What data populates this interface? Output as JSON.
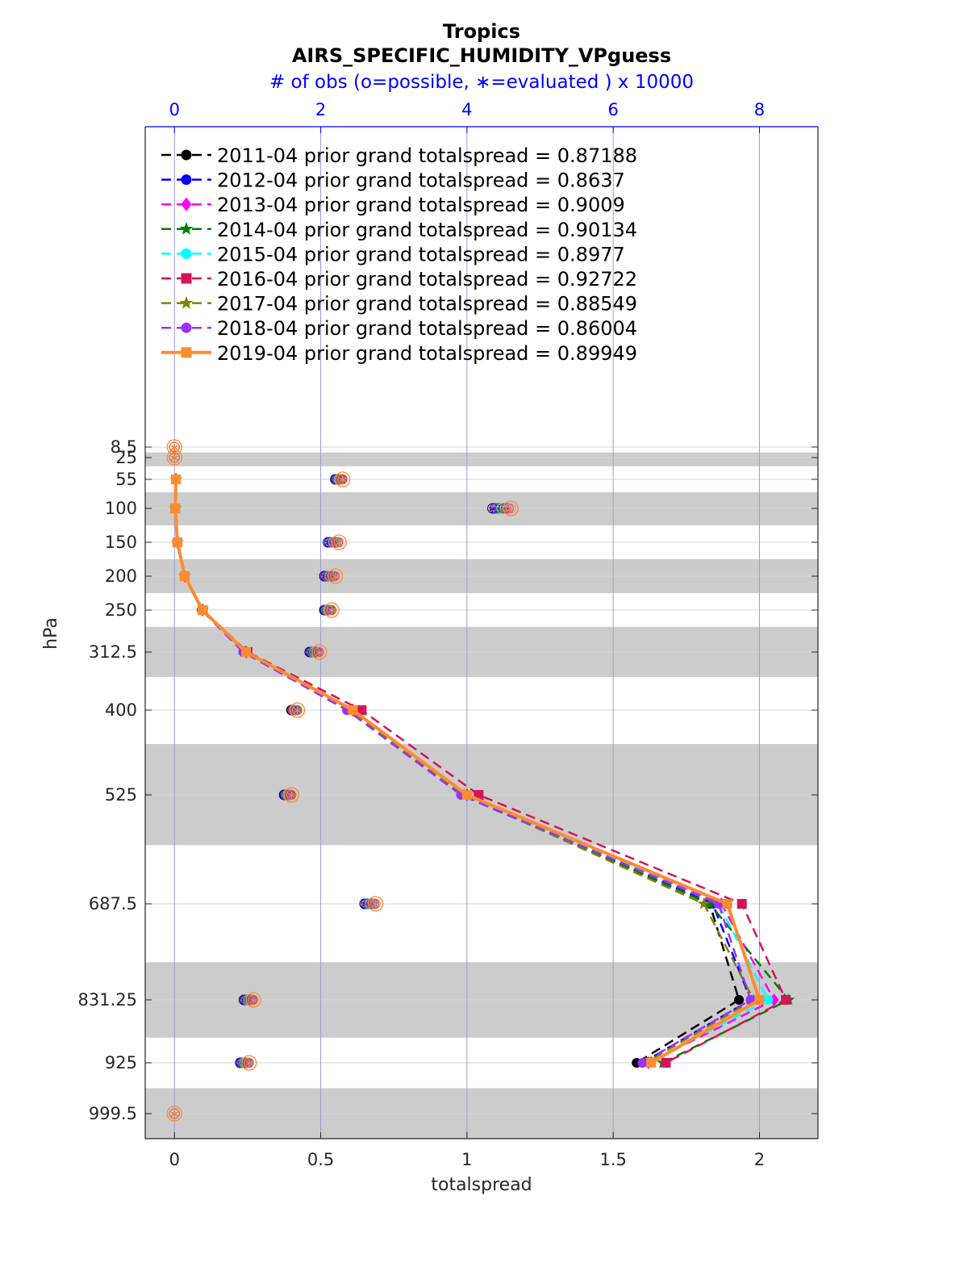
{
  "chart_data": {
    "type": "line",
    "title": "Tropics",
    "subtitle": "AIRS_SPECIFIC_HUMIDITY_VPguess",
    "top_axis_label": "# of obs (o=possible, ∗=evaluated ) x 10000",
    "xlabel": "totalspread",
    "ylabel": "hPa",
    "xlim": [
      -0.1,
      2.2
    ],
    "x_ticks": [
      "0",
      "0.5",
      "1",
      "1.5",
      "2"
    ],
    "top_xlim": [
      -0.4,
      8.8
    ],
    "top_ticks": [
      "0",
      "2",
      "4",
      "6",
      "8"
    ],
    "y_levels": [
      8.5,
      25,
      55,
      100,
      150,
      200,
      250,
      312.5,
      400,
      525,
      687.5,
      831.25,
      925,
      999.5
    ],
    "y_tick_labels": [
      "8.5",
      "25",
      "55",
      "100",
      "150",
      "200",
      "250",
      "312.5",
      "400",
      "525",
      "687.5",
      "831.25",
      "925",
      "999.5"
    ],
    "y_reversed": true,
    "shaded_layers_hPa": [
      [
        17,
        37
      ],
      [
        75,
        125
      ],
      [
        175,
        225
      ],
      [
        275,
        350
      ],
      [
        450,
        600
      ],
      [
        775,
        887.5
      ],
      [
        962.25,
        1037
      ]
    ],
    "grid": true,
    "legend_position": "top-left",
    "series": [
      {
        "name": "2011-04 prior grand totalspread = 0.87188",
        "color": "#000000",
        "style": "dashed",
        "marker": "circle",
        "levels": [
          55,
          100,
          150,
          200,
          250,
          312.5,
          400,
          525,
          687.5,
          831.25,
          925
        ],
        "values": [
          0.005,
          0.003,
          0.01,
          0.035,
          0.095,
          0.24,
          0.6,
          0.99,
          1.83,
          1.93,
          1.58
        ]
      },
      {
        "name": "2012-04 prior grand totalspread = 0.8637",
        "color": "#0000ff",
        "style": "dashed",
        "marker": "circle",
        "levels": [
          55,
          100,
          150,
          200,
          250,
          312.5,
          400,
          525,
          687.5,
          831.25,
          925
        ],
        "values": [
          0.005,
          0.003,
          0.01,
          0.035,
          0.093,
          0.235,
          0.59,
          0.98,
          1.84,
          1.97,
          1.6
        ]
      },
      {
        "name": "2013-04 prior grand totalspread = 0.9009",
        "color": "#ff00ff",
        "style": "dashed",
        "marker": "diamond",
        "levels": [
          55,
          100,
          150,
          200,
          250,
          312.5,
          400,
          525,
          687.5,
          831.25,
          925
        ],
        "values": [
          0.005,
          0.003,
          0.01,
          0.035,
          0.096,
          0.245,
          0.61,
          1.0,
          1.87,
          2.05,
          1.62
        ]
      },
      {
        "name": "2014-04 prior grand totalspread = 0.90134",
        "color": "#008000",
        "style": "dashed",
        "marker": "star",
        "levels": [
          55,
          100,
          150,
          200,
          250,
          312.5,
          400,
          525,
          687.5,
          831.25,
          925
        ],
        "values": [
          0.005,
          0.003,
          0.01,
          0.035,
          0.096,
          0.245,
          0.61,
          1.0,
          1.83,
          2.1,
          1.67
        ]
      },
      {
        "name": "2015-04 prior grand totalspread = 0.8977",
        "color": "#00ffff",
        "style": "dashed",
        "marker": "circle",
        "levels": [
          55,
          100,
          150,
          200,
          250,
          312.5,
          400,
          525,
          687.5,
          831.25,
          925
        ],
        "values": [
          0.005,
          0.003,
          0.01,
          0.035,
          0.095,
          0.24,
          0.6,
          0.99,
          1.86,
          2.03,
          1.62
        ]
      },
      {
        "name": "2016-04 prior grand totalspread = 0.92722",
        "color": "#d4145a",
        "style": "dashed",
        "marker": "square",
        "levels": [
          55,
          100,
          150,
          200,
          250,
          312.5,
          400,
          525,
          687.5,
          831.25,
          925
        ],
        "values": [
          0.005,
          0.003,
          0.01,
          0.035,
          0.097,
          0.25,
          0.64,
          1.04,
          1.94,
          2.09,
          1.68
        ]
      },
      {
        "name": "2017-04 prior grand totalspread = 0.88549",
        "color": "#808000",
        "style": "dashed",
        "marker": "star",
        "levels": [
          55,
          100,
          150,
          200,
          250,
          312.5,
          400,
          525,
          687.5,
          831.25,
          925
        ],
        "values": [
          0.005,
          0.003,
          0.01,
          0.035,
          0.095,
          0.24,
          0.6,
          0.99,
          1.81,
          1.98,
          1.61
        ]
      },
      {
        "name": "2018-04 prior grand totalspread = 0.86004",
        "color": "#9933ff",
        "style": "dashed",
        "marker": "circle",
        "levels": [
          55,
          100,
          150,
          200,
          250,
          312.5,
          400,
          525,
          687.5,
          831.25,
          925
        ],
        "values": [
          0.005,
          0.003,
          0.01,
          0.035,
          0.093,
          0.235,
          0.59,
          0.98,
          1.86,
          1.97,
          1.6
        ]
      },
      {
        "name": "2019-04 prior grand totalspread = 0.89949",
        "color": "#ff8c2e",
        "style": "solid",
        "marker": "square",
        "levels": [
          55,
          100,
          150,
          200,
          250,
          312.5,
          400,
          525,
          687.5,
          831.25,
          925
        ],
        "values": [
          0.005,
          0.003,
          0.01,
          0.035,
          0.096,
          0.245,
          0.61,
          1.0,
          1.89,
          2.0,
          1.63
        ]
      }
    ],
    "obs_counts_x10000": {
      "levels": [
        8.5,
        25,
        55,
        100,
        150,
        200,
        250,
        312.5,
        400,
        525,
        687.5,
        831.25,
        925,
        999.5
      ],
      "possible": [
        0.0,
        0.0,
        2.3,
        4.6,
        2.25,
        2.2,
        2.15,
        1.98,
        1.68,
        1.6,
        2.75,
        1.08,
        1.02,
        0.0
      ],
      "evaluated_min": [
        0.0,
        0.0,
        2.2,
        4.35,
        2.1,
        2.05,
        2.05,
        1.85,
        1.6,
        1.5,
        2.6,
        0.95,
        0.9,
        0.0
      ]
    }
  }
}
